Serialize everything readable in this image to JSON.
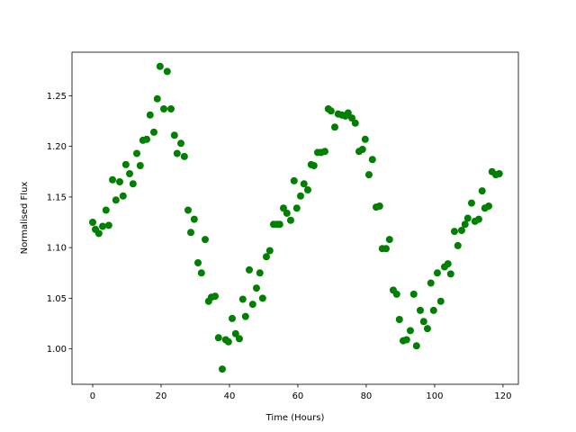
{
  "chart_data": {
    "type": "scatter",
    "xlabel": "Time (Hours)",
    "ylabel": "Normalised Flux",
    "color": "#008000",
    "x": [
      0,
      0.8,
      1.8,
      2.9,
      3.9,
      4.7,
      5.8,
      6.8,
      7.9,
      8.9,
      9.7,
      10.8,
      11.8,
      12.9,
      13.9,
      14.7,
      15.8,
      16.8,
      17.9,
      18.9,
      19.7,
      20.8,
      21.8,
      22.9,
      23.9,
      24.7,
      25.8,
      26.8,
      27.9,
      28.7,
      29.7,
      30.8,
      31.8,
      32.9,
      33.9,
      34.7,
      35.8,
      36.8,
      37.9,
      38.9,
      39.7,
      40.8,
      41.8,
      42.9,
      43.9,
      44.7,
      45.8,
      46.8,
      47.9,
      48.9,
      49.7,
      50.8,
      51.8,
      52.9,
      53.9,
      54.7,
      55.8,
      56.8,
      57.9,
      58.9,
      59.7,
      60.8,
      61.8,
      62.9,
      63.9,
      64.7,
      65.8,
      66.8,
      67.9,
      68.9,
      69.7,
      70.8,
      71.8,
      72.9,
      73.9,
      74.7,
      75.8,
      76.8,
      77.9,
      78.9,
      79.7,
      80.8,
      81.8,
      82.9,
      83.9,
      84.7,
      85.8,
      86.8,
      87.9,
      88.9,
      89.7,
      90.8,
      91.8,
      92.9,
      93.9,
      94.7,
      95.8,
      96.8,
      97.9,
      98.9,
      99.7,
      100.8,
      101.8,
      102.9,
      103.9,
      104.7,
      105.8,
      106.8,
      107.9,
      108.9,
      109.7,
      110.8,
      111.8,
      112.9,
      113.9,
      114.7,
      115.8,
      116.8,
      117.9,
      118.9
    ],
    "values": [
      1.125,
      1.118,
      1.114,
      1.121,
      1.137,
      1.122,
      1.167,
      1.147,
      1.165,
      1.151,
      1.182,
      1.173,
      1.163,
      1.193,
      1.181,
      1.206,
      1.207,
      1.231,
      1.214,
      1.247,
      1.279,
      1.237,
      1.274,
      1.237,
      1.211,
      1.193,
      1.203,
      1.19,
      1.137,
      1.115,
      1.128,
      1.085,
      1.075,
      1.108,
      1.047,
      1.051,
      1.052,
      1.011,
      0.98,
      1.009,
      1.007,
      1.03,
      1.015,
      1.01,
      1.049,
      1.032,
      1.078,
      1.044,
      1.06,
      1.075,
      1.05,
      1.091,
      1.097,
      1.123,
      1.123,
      1.123,
      1.139,
      1.134,
      1.127,
      1.166,
      1.139,
      1.151,
      1.163,
      1.157,
      1.182,
      1.181,
      1.194,
      1.194,
      1.195,
      1.237,
      1.235,
      1.219,
      1.232,
      1.231,
      1.23,
      1.233,
      1.228,
      1.223,
      1.195,
      1.197,
      1.207,
      1.172,
      1.187,
      1.14,
      1.141,
      1.099,
      1.099,
      1.108,
      1.058,
      1.054,
      1.029,
      1.008,
      1.009,
      1.018,
      1.054,
      1.003,
      1.038,
      1.027,
      1.02,
      1.065,
      1.038,
      1.075,
      1.047,
      1.081,
      1.084,
      1.074,
      1.116,
      1.102,
      1.117,
      1.123,
      1.129,
      1.144,
      1.126,
      1.128,
      1.156,
      1.139,
      1.141,
      1.175,
      1.172,
      1.173
    ],
    "xlim": [
      -6.05,
      124.5
    ],
    "xticks": [
      0,
      20,
      40,
      60,
      80,
      100,
      120
    ],
    "ylim": [
      0.965,
      1.293
    ],
    "yticks": [
      {
        "value": 1.0,
        "label": "1.00"
      },
      1.05,
      {
        "value": 1.1,
        "label": "1.10"
      },
      1.15,
      {
        "value": 1.2,
        "label": "1.20"
      },
      1.25
    ]
  }
}
